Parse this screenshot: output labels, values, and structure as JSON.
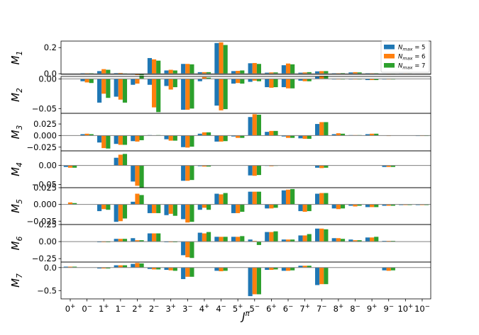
{
  "chart_data": {
    "type": "bar",
    "xlabel": "Jπ",
    "categories": [
      "0+",
      "0−",
      "1+",
      "1−",
      "2+",
      "2−",
      "3+",
      "3−",
      "4+",
      "4−",
      "5+",
      "5−",
      "6+",
      "6−",
      "7+",
      "7−",
      "8+",
      "8−",
      "9+",
      "9−",
      "10+",
      "10−"
    ],
    "legend": {
      "placement": "top-right",
      "entries": [
        {
          "label": "N_max = 5",
          "color": "#1f77b4"
        },
        {
          "label": "N_max = 6",
          "color": "#ff7f0e"
        },
        {
          "label": "N_max = 7",
          "color": "#2ca02c"
        }
      ]
    },
    "panels": [
      {
        "ylabel": "M1",
        "ylim": [
          -0.005,
          0.25
        ],
        "yticks": [
          0.0,
          0.2
        ],
        "yticklabels": [
          "0.0",
          "0.2"
        ],
        "series": [
          [
            0,
            0.004,
            0.02,
            0.005,
            -0.005,
            0.12,
            0.025,
            0.075,
            0.012,
            0.235,
            0.02,
            0.08,
            0.008,
            0.065,
            0.008,
            0.018,
            0.004,
            0.01,
            0.004,
            -0.004,
            0.002,
            0.001
          ],
          [
            0,
            0.004,
            0.035,
            0.006,
            -0.01,
            0.11,
            0.03,
            0.075,
            0.012,
            0.24,
            0.022,
            0.082,
            0.01,
            0.078,
            0.01,
            0.02,
            0.004,
            0.012,
            0.004,
            -0.006,
            0.002,
            0.001
          ],
          [
            0,
            0.004,
            0.03,
            0.003,
            -0.012,
            0.1,
            0.025,
            0.072,
            0.012,
            0.22,
            0.025,
            0.075,
            0.01,
            0.072,
            0.012,
            0.02,
            0.005,
            0.01,
            0.004,
            -0.005,
            0.002,
            0.001
          ]
        ]
      },
      {
        "ylabel": "M2",
        "ylim": [
          -0.058,
          0.004
        ],
        "yticks": [
          0.0,
          -0.05
        ],
        "yticklabels": [
          "0.00",
          "−0.05"
        ],
        "series": [
          [
            0,
            -0.004,
            -0.04,
            -0.03,
            -0.01,
            -0.01,
            -0.012,
            -0.052,
            -0.004,
            -0.045,
            -0.008,
            -0.005,
            -0.014,
            -0.014,
            -0.003,
            0.004,
            -0.001,
            -0.001,
            -0.002,
            -0.001,
            0,
            0
          ],
          [
            0,
            -0.006,
            -0.025,
            -0.035,
            -0.008,
            -0.048,
            -0.018,
            -0.052,
            0.003,
            -0.053,
            -0.007,
            -0.003,
            -0.015,
            -0.016,
            -0.004,
            0.005,
            -0.001,
            -0.001,
            -0.002,
            -0.001,
            0,
            0
          ],
          [
            0,
            -0.007,
            -0.032,
            -0.04,
            0.005,
            -0.056,
            -0.014,
            -0.05,
            0.002,
            -0.051,
            -0.008,
            -0.004,
            -0.014,
            -0.016,
            -0.004,
            0.005,
            -0.001,
            -0.001,
            -0.002,
            -0.001,
            0,
            0
          ]
        ]
      },
      {
        "ylabel": "M3",
        "ylim": [
          -0.033,
          0.048
        ],
        "yticks": [
          0.025,
          0.0,
          -0.025
        ],
        "yticklabels": [
          "0.025",
          "0.000",
          "−0.025"
        ],
        "series": [
          [
            0,
            0.003,
            -0.015,
            -0.018,
            -0.012,
            0.001,
            -0.008,
            -0.025,
            0.004,
            -0.013,
            -0.002,
            0.04,
            0.008,
            -0.002,
            -0.006,
            0.025,
            0.003,
            0.001,
            0.003,
            0,
            0,
            -0.001
          ],
          [
            0,
            0.004,
            -0.027,
            -0.02,
            -0.013,
            0,
            -0.011,
            -0.026,
            0.007,
            -0.013,
            -0.005,
            0.046,
            0.01,
            -0.005,
            -0.007,
            0.029,
            0.005,
            0.001,
            0.004,
            -0.001,
            0,
            -0.001
          ],
          [
            0,
            0.003,
            -0.028,
            -0.02,
            -0.01,
            0.001,
            -0.011,
            -0.024,
            0.007,
            -0.012,
            -0.005,
            0.045,
            0.01,
            -0.005,
            -0.007,
            0.029,
            0.004,
            0.001,
            0.004,
            0,
            0,
            -0.001
          ]
        ]
      },
      {
        "ylabel": "M4",
        "ylim": [
          -0.058,
          0.038
        ],
        "yticks": [
          0.0,
          -0.05
        ],
        "yticklabels": [
          "0.00",
          "−0.05"
        ],
        "series": [
          [
            -0.004,
            0,
            0,
            0.02,
            -0.042,
            0,
            0,
            -0.04,
            -0.002,
            0,
            0,
            -0.026,
            -0.001,
            0,
            0,
            -0.006,
            0,
            0,
            0,
            -0.004,
            0,
            0
          ],
          [
            -0.006,
            0,
            0,
            0.028,
            -0.053,
            0,
            0,
            -0.04,
            -0.003,
            0,
            0,
            -0.027,
            -0.002,
            0,
            0,
            -0.007,
            0,
            0,
            0,
            -0.004,
            0,
            0
          ],
          [
            -0.006,
            0,
            0,
            0.03,
            -0.058,
            0,
            0,
            -0.038,
            -0.003,
            0,
            0,
            -0.025,
            -0.001,
            0,
            0,
            -0.006,
            0,
            0,
            0,
            -0.004,
            0,
            0
          ]
        ]
      },
      {
        "ylabel": "M5",
        "ylim": [
          -0.03,
          0.025
        ],
        "yticks": [
          0.025,
          0.0,
          -0.025
        ],
        "yticklabels": [
          "0.025",
          "0.000",
          "−0.025"
        ],
        "series": [
          [
            0,
            0,
            -0.01,
            -0.026,
            0.004,
            -0.013,
            -0.016,
            -0.022,
            -0.008,
            0.016,
            -0.013,
            0.019,
            -0.006,
            0.021,
            -0.01,
            0.016,
            -0.006,
            -0.002,
            -0.004,
            -0.002,
            -0.001,
            -0.001
          ],
          [
            0.003,
            0,
            -0.007,
            -0.025,
            0.016,
            -0.013,
            -0.014,
            -0.027,
            -0.005,
            0.015,
            -0.013,
            0.019,
            -0.006,
            0.022,
            -0.011,
            0.017,
            -0.007,
            -0.003,
            -0.004,
            -0.002,
            -0.001,
            -0.001
          ],
          [
            0.002,
            0,
            -0.008,
            -0.021,
            0.014,
            -0.013,
            -0.017,
            -0.026,
            -0.008,
            0.017,
            -0.011,
            0.019,
            -0.005,
            0.023,
            -0.01,
            0.017,
            -0.006,
            -0.002,
            -0.004,
            -0.002,
            -0.001,
            -0.001
          ]
        ]
      },
      {
        "ylabel": "M6",
        "ylim": [
          -0.3,
          0.25
        ],
        "yticks": [
          0.25,
          0.0,
          -0.25
        ],
        "yticklabels": [
          "0.25",
          "0.00",
          "−0.25"
        ],
        "series": [
          [
            0,
            0,
            -0.01,
            0.04,
            0.05,
            0.12,
            -0.01,
            -0.2,
            0.13,
            0.07,
            0.07,
            0.03,
            0.14,
            0.03,
            0.09,
            0.19,
            0.05,
            0.03,
            0.06,
            0.01,
            0,
            0
          ],
          [
            0,
            0,
            -0.01,
            0.04,
            0.02,
            0.12,
            -0.01,
            -0.23,
            0.12,
            0.07,
            0.07,
            0.01,
            0.14,
            0.03,
            0.09,
            0.19,
            0.05,
            0.02,
            0.06,
            0.01,
            0,
            0
          ],
          [
            0,
            0,
            -0.01,
            0.04,
            0.02,
            0.12,
            -0.01,
            -0.24,
            0.14,
            0.07,
            0.08,
            -0.05,
            0.15,
            0.03,
            0.11,
            0.18,
            0.04,
            0.02,
            0.07,
            0.01,
            0,
            0
          ]
        ]
      },
      {
        "ylabel": "M7",
        "ylim": [
          -0.68,
          0.12
        ],
        "yticks": [
          0.0,
          -0.5
        ],
        "yticklabels": [
          "0.0",
          "−0.5"
        ],
        "series": [
          [
            0.02,
            0,
            -0.02,
            0.05,
            0.08,
            -0.03,
            -0.05,
            -0.25,
            0,
            -0.07,
            0,
            -0.62,
            -0.05,
            -0.07,
            0.04,
            -0.38,
            0,
            0,
            0,
            -0.06,
            0,
            0
          ],
          [
            0.02,
            0,
            -0.02,
            0.05,
            0.1,
            -0.04,
            -0.06,
            -0.2,
            0,
            -0.08,
            0,
            -0.58,
            -0.05,
            -0.07,
            0.04,
            -0.36,
            0,
            0,
            0,
            -0.07,
            0,
            0
          ],
          [
            0.02,
            0,
            -0.02,
            0.05,
            0.09,
            -0.04,
            -0.07,
            -0.2,
            0,
            -0.07,
            0,
            -0.58,
            -0.04,
            -0.06,
            0.04,
            -0.36,
            0,
            0,
            0,
            -0.06,
            0,
            0
          ]
        ]
      }
    ]
  }
}
